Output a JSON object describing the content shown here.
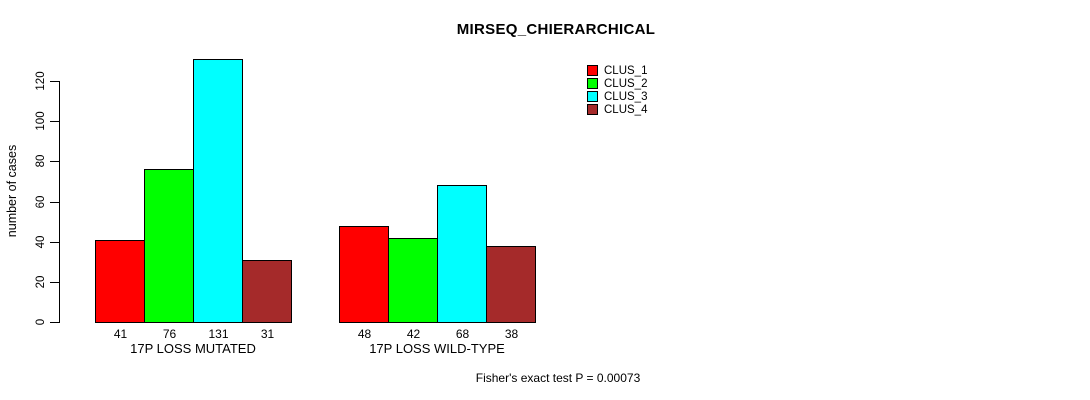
{
  "chart_data": {
    "type": "bar",
    "title": "MIRSEQ_CHIERARCHICAL",
    "xlabel": "",
    "ylabel": "number of cases",
    "categories": [
      "17P LOSS MUTATED",
      "17P LOSS WILD-TYPE"
    ],
    "series": [
      {
        "name": "CLUS_1",
        "color": "#FF0000",
        "values": [
          41,
          48
        ]
      },
      {
        "name": "CLUS_2",
        "color": "#00FF00",
        "values": [
          76,
          42
        ]
      },
      {
        "name": "CLUS_3",
        "color": "#00FFFF",
        "values": [
          131,
          68
        ]
      },
      {
        "name": "CLUS_4",
        "color": "#A52A2A",
        "values": [
          31,
          38
        ]
      }
    ],
    "ylim": [
      0,
      120
    ],
    "yticks": [
      0,
      20,
      40,
      60,
      80,
      100,
      120
    ],
    "bar_value_labels": true,
    "grid": false,
    "legend_position": "top-right",
    "annotation": "Fisher's exact test P = 0.00073"
  }
}
